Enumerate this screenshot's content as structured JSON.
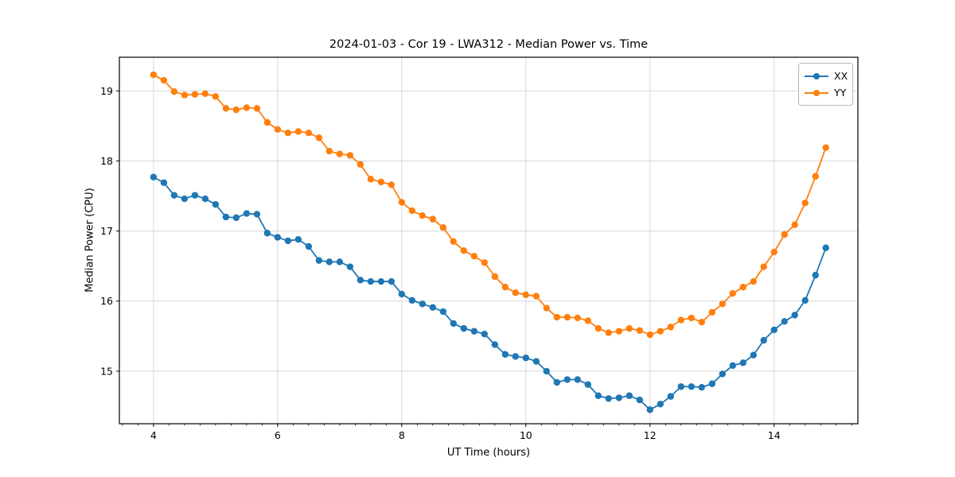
{
  "figure": {
    "title": "2024-01-03 - Cor 19 - LWA312 - Median Power vs. Time",
    "xlabel": "UT Time (hours)",
    "ylabel": "Median Power (CPU)"
  },
  "legend": {
    "entries": [
      {
        "label": "XX",
        "color": "#1f77b4"
      },
      {
        "label": "YY",
        "color": "#ff7f0e"
      }
    ]
  },
  "chart_data": {
    "type": "line",
    "title": "2024-01-03 - Cor 19 - LWA312 - Median Power vs. Time",
    "xlabel": "UT Time (hours)",
    "ylabel": "Median Power (CPU)",
    "grid": true,
    "legend_position": "upper right",
    "marker": "circle",
    "xlim": [
      3.45,
      15.35
    ],
    "ylim": [
      14.25,
      19.48
    ],
    "xticks": [
      4,
      6,
      8,
      10,
      12,
      14
    ],
    "yticks": [
      15,
      16,
      17,
      18,
      19
    ],
    "minor_xtick_step": 0.25,
    "x": [
      4.0,
      4.167,
      4.333,
      4.5,
      4.667,
      4.833,
      5.0,
      5.167,
      5.333,
      5.5,
      5.667,
      5.833,
      6.0,
      6.167,
      6.333,
      6.5,
      6.667,
      6.833,
      7.0,
      7.167,
      7.333,
      7.5,
      7.667,
      7.833,
      8.0,
      8.167,
      8.333,
      8.5,
      8.667,
      8.833,
      9.0,
      9.167,
      9.333,
      9.5,
      9.667,
      9.833,
      10.0,
      10.167,
      10.333,
      10.5,
      10.667,
      10.833,
      11.0,
      11.167,
      11.333,
      11.5,
      11.667,
      11.833,
      12.0,
      12.167,
      12.333,
      12.5,
      12.667,
      12.833,
      13.0,
      13.167,
      13.333,
      13.5,
      13.667,
      13.833,
      14.0,
      14.167,
      14.333,
      14.5,
      14.667,
      14.833
    ],
    "series": [
      {
        "name": "XX",
        "color": "#1f77b4",
        "values": [
          17.77,
          17.69,
          17.51,
          17.46,
          17.51,
          17.46,
          17.38,
          17.2,
          17.19,
          17.25,
          17.24,
          16.97,
          16.91,
          16.86,
          16.88,
          16.78,
          16.58,
          16.56,
          16.56,
          16.49,
          16.3,
          16.28,
          16.28,
          16.28,
          16.1,
          16.01,
          15.96,
          15.91,
          15.85,
          15.68,
          15.61,
          15.57,
          15.53,
          15.38,
          15.24,
          15.21,
          15.19,
          15.14,
          15.0,
          14.84,
          14.88,
          14.88,
          14.81,
          14.65,
          14.61,
          14.62,
          14.65,
          14.59,
          14.45,
          14.53,
          14.64,
          14.78,
          14.78,
          14.77,
          14.82,
          14.96,
          15.08,
          15.12,
          15.23,
          15.44,
          15.59,
          15.71,
          15.8,
          16.01,
          16.37,
          16.76
        ]
      },
      {
        "name": "YY",
        "color": "#ff7f0e",
        "values": [
          19.23,
          19.15,
          18.99,
          18.94,
          18.95,
          18.96,
          18.92,
          18.75,
          18.73,
          18.76,
          18.75,
          18.55,
          18.45,
          18.4,
          18.42,
          18.4,
          18.33,
          18.14,
          18.1,
          18.08,
          17.95,
          17.74,
          17.7,
          17.66,
          17.41,
          17.29,
          17.22,
          17.17,
          17.05,
          16.85,
          16.72,
          16.64,
          16.55,
          16.35,
          16.2,
          16.12,
          16.09,
          16.07,
          15.9,
          15.77,
          15.77,
          15.76,
          15.72,
          15.61,
          15.55,
          15.57,
          15.61,
          15.58,
          15.52,
          15.57,
          15.63,
          15.73,
          15.76,
          15.7,
          15.84,
          15.96,
          16.11,
          16.2,
          16.28,
          16.49,
          16.7,
          16.95,
          17.09,
          17.4,
          17.78,
          18.19
        ]
      }
    ]
  },
  "style": {
    "grid_color": "#d8d8d8",
    "spine_color": "#000000",
    "background": "#ffffff"
  }
}
